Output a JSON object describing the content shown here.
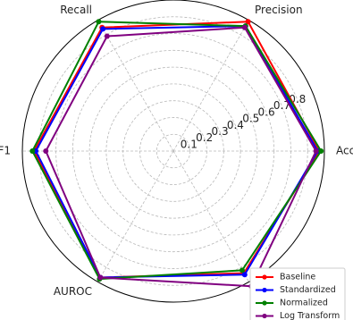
{
  "chart_data": {
    "type": "radar",
    "axes": [
      "Precision",
      "Recall",
      "F1",
      "AUROC",
      "AUPRC",
      "Accuracy"
    ],
    "radial_ticks": [
      "0.1",
      "0.2",
      "0.3",
      "0.4",
      "0.5",
      "0.6",
      "0.7",
      "0.8"
    ],
    "rlim": [
      0,
      0.9
    ],
    "grid": true,
    "legend_position": "bottom-right",
    "series": [
      {
        "name": "Baseline",
        "color": "#ff0000",
        "values": [
          0.89,
          0.85,
          0.83,
          0.87,
          0.84,
          0.87
        ]
      },
      {
        "name": "Standardized",
        "color": "#0000ff",
        "values": [
          0.86,
          0.84,
          0.82,
          0.87,
          0.85,
          0.86
        ]
      },
      {
        "name": "Normalized",
        "color": "#008000",
        "values": [
          0.86,
          0.89,
          0.84,
          0.88,
          0.82,
          0.88
        ]
      },
      {
        "name": "Log Transform",
        "color": "#800080",
        "values": [
          0.85,
          0.79,
          0.76,
          0.87,
          0.93,
          0.85
        ]
      }
    ]
  }
}
